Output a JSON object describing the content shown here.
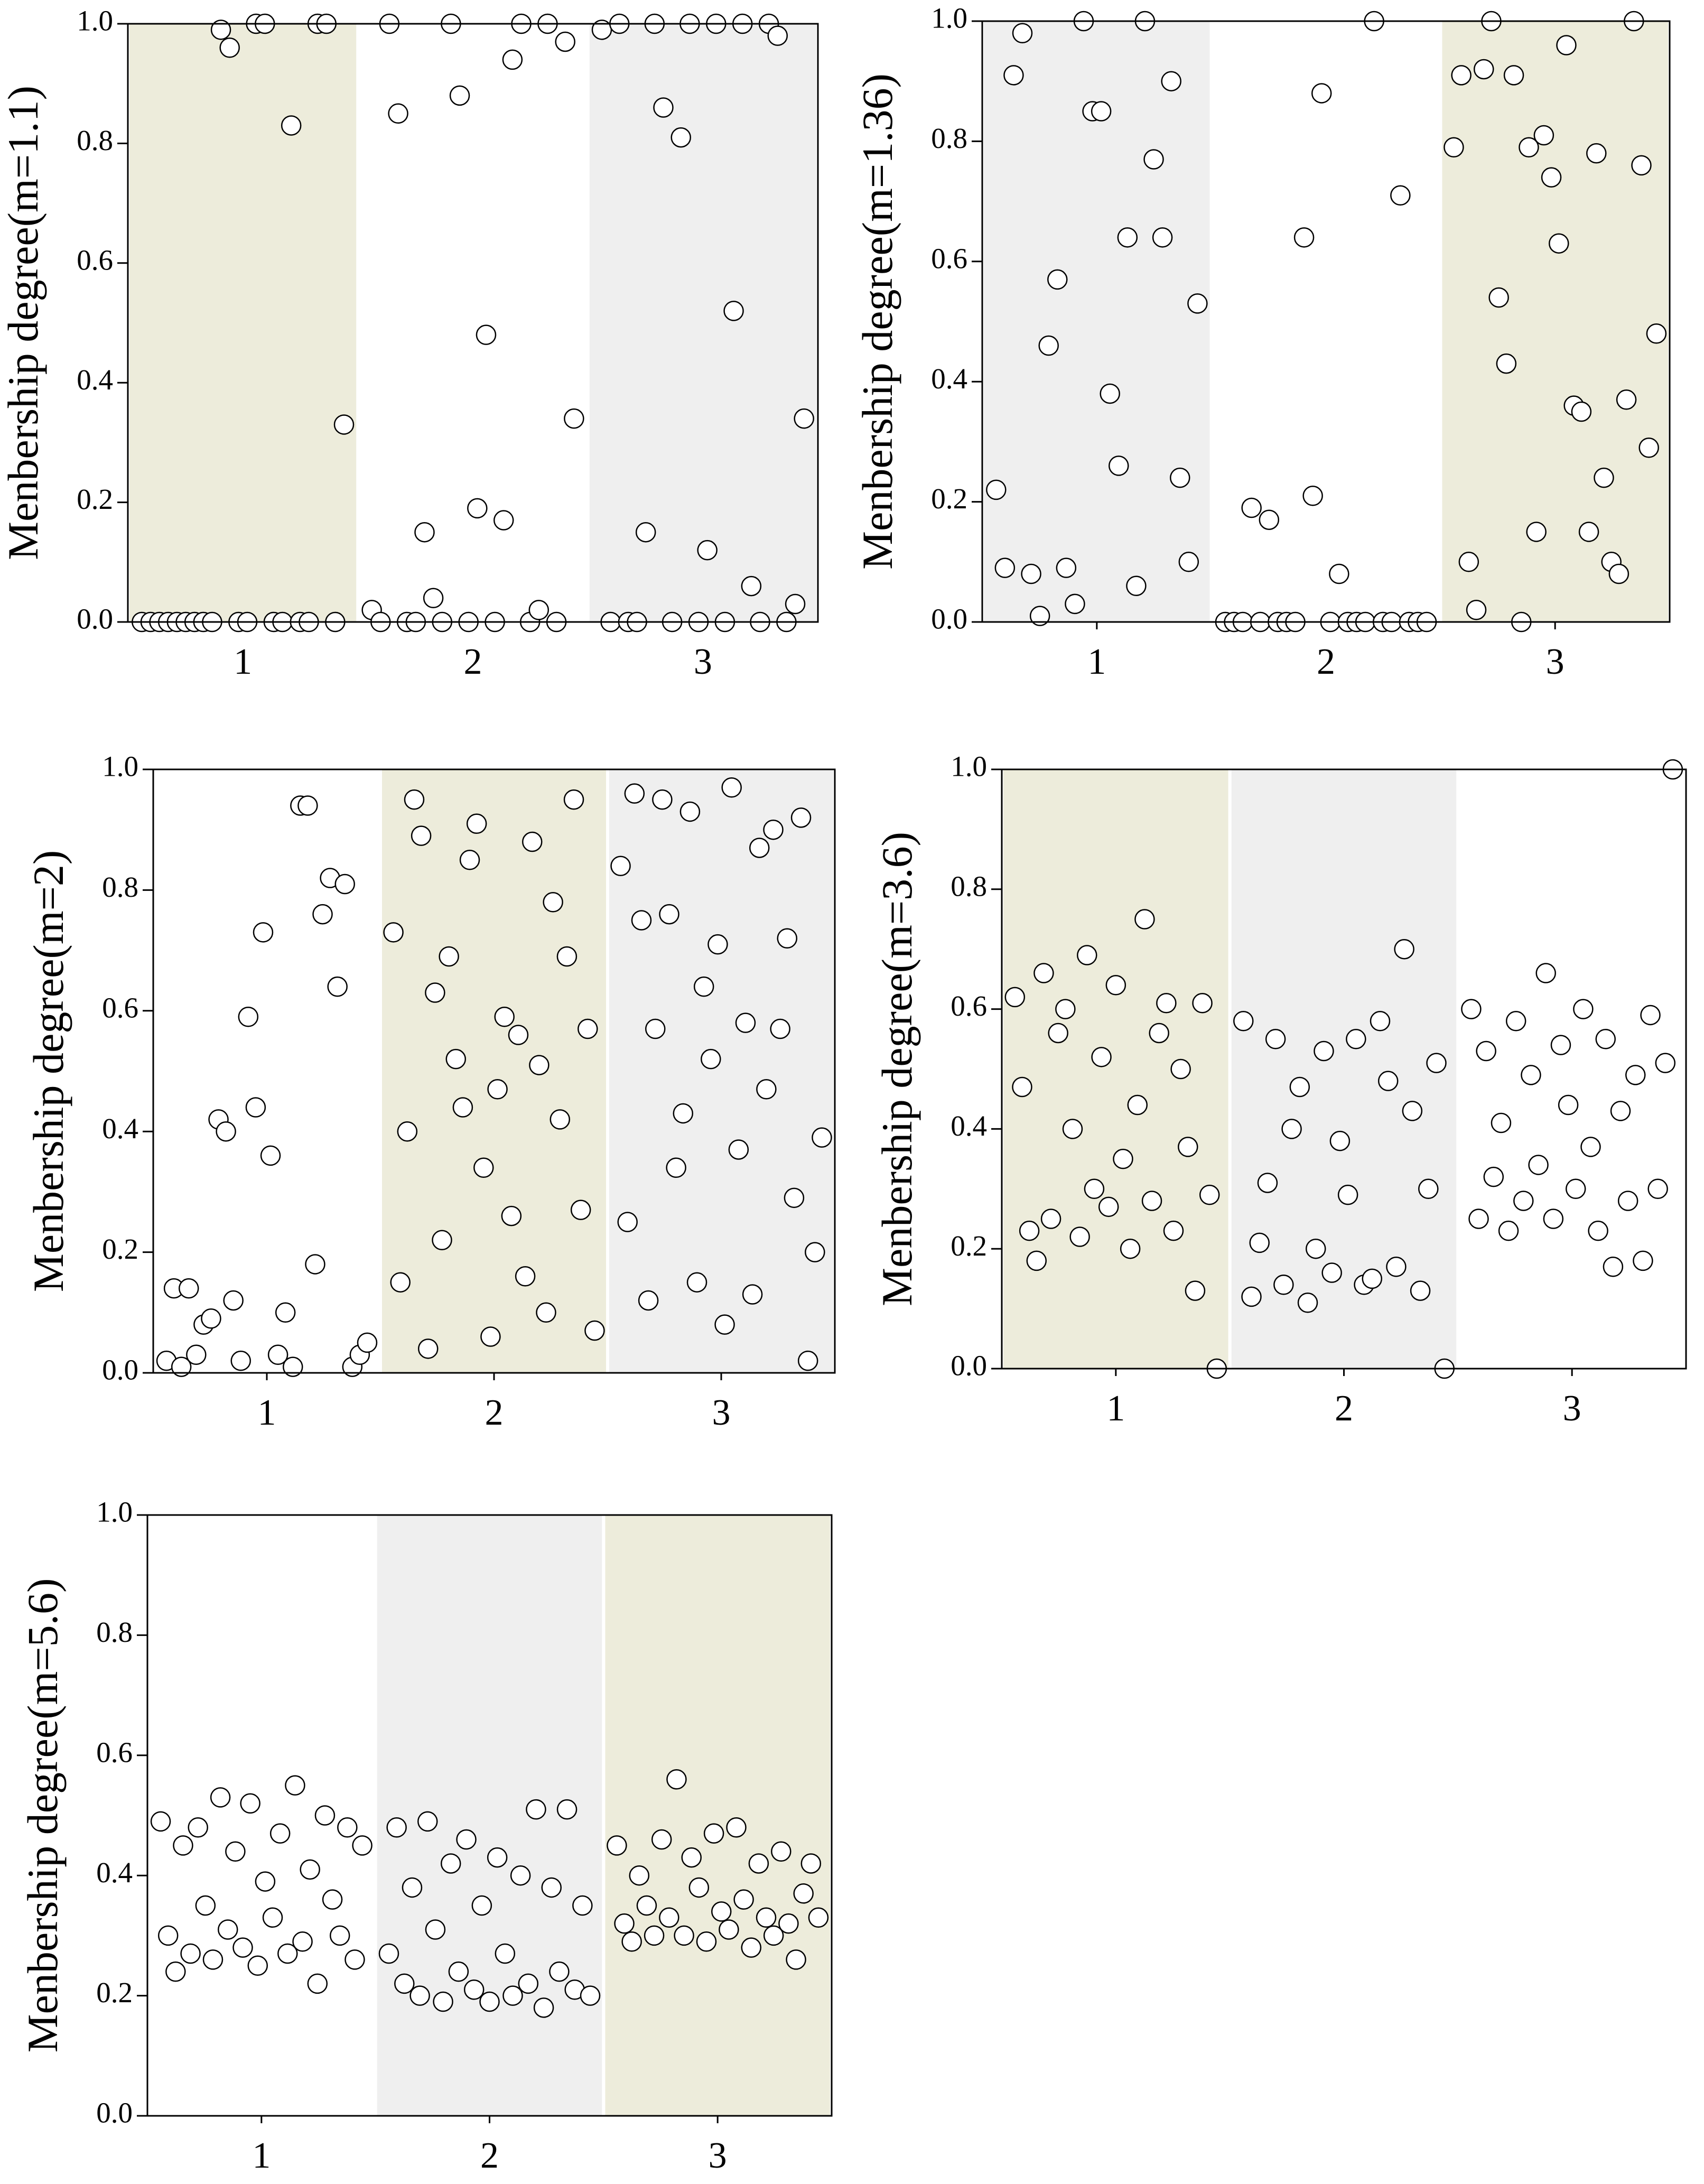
{
  "chart_data": [
    {
      "type": "scatter",
      "ylabel": "Menbership degree(m=1.1)",
      "categories": [
        "1",
        "2",
        "3"
      ],
      "ylim": [
        0,
        1
      ],
      "yticks": [
        {
          "value": 0,
          "label": "0.0"
        },
        0.2,
        0.4,
        0.6,
        0.8,
        {
          "value": 1,
          "label": "1.0"
        }
      ],
      "marker_fill": "#ffffff",
      "marker_edge": "#000000",
      "series": [
        {
          "background": "#edecdb",
          "values": [
            0,
            0,
            0,
            0,
            0,
            0,
            0,
            0,
            0,
            0.99,
            0.96,
            0,
            0,
            1,
            1,
            0,
            0,
            0.83,
            0,
            0,
            1,
            1,
            0,
            0.33
          ]
        },
        {
          "background": "#ffffff",
          "values": [
            0.02,
            0,
            1,
            0.85,
            0,
            0,
            0.15,
            0.04,
            0,
            1,
            0.88,
            0,
            0.19,
            0.48,
            0,
            0.17,
            0.94,
            1,
            0,
            0.02,
            1,
            0,
            0.97,
            0.34
          ]
        },
        {
          "background": "#efefef",
          "values": [
            0.99,
            0,
            1,
            0,
            0,
            0.15,
            1,
            0.86,
            0,
            0.81,
            1,
            0,
            0.12,
            1,
            0,
            0.52,
            1,
            0.06,
            0,
            1,
            0.98,
            0,
            0.03,
            0.34
          ]
        }
      ]
    },
    {
      "type": "scatter",
      "ylabel": "Menbership degree(m=1.36)",
      "categories": [
        "1",
        "2",
        "3"
      ],
      "ylim": [
        0,
        1
      ],
      "yticks": [
        {
          "value": 0,
          "label": "0.0"
        },
        0.2,
        0.4,
        0.6,
        0.8,
        {
          "value": 1,
          "label": "1.0"
        }
      ],
      "marker_fill": "#ffffff",
      "marker_edge": "#000000",
      "series": [
        {
          "background": "#efefef",
          "values": [
            0.22,
            0.09,
            0.91,
            0.98,
            0.08,
            0.01,
            0.46,
            0.57,
            0.09,
            0.03,
            1,
            0.85,
            0.85,
            0.38,
            0.26,
            0.64,
            0.06,
            1,
            0.77,
            0.64,
            0.9,
            0.24,
            0.1,
            0.53
          ]
        },
        {
          "background": "#ffffff",
          "values": [
            0,
            0,
            0,
            0.19,
            0,
            0.17,
            0,
            0,
            0,
            0.64,
            0.21,
            0.88,
            0,
            0.08,
            0,
            0,
            0,
            1,
            0,
            0,
            0.71,
            0,
            0,
            0
          ]
        },
        {
          "background": "#edecdb",
          "values": [
            0.79,
            0.91,
            0.1,
            0.02,
            0.92,
            1,
            0.54,
            0.43,
            0.91,
            0,
            0.79,
            0.15,
            0.81,
            0.74,
            0.63,
            0.96,
            0.36,
            0.35,
            0.15,
            0.78,
            0.24,
            0.1,
            0.08,
            0.37,
            1,
            0.76,
            0.29,
            0.48
          ]
        }
      ]
    },
    {
      "type": "scatter",
      "ylabel": "Menbership degree(m=2)",
      "categories": [
        "1",
        "2",
        "3"
      ],
      "ylim": [
        0,
        1
      ],
      "yticks": [
        {
          "value": 0,
          "label": "0.0"
        },
        0.2,
        0.4,
        0.6,
        0.8,
        {
          "value": 1,
          "label": "1.0"
        }
      ],
      "marker_fill": "#ffffff",
      "marker_edge": "#000000",
      "series": [
        {
          "background": "#ffffff",
          "values": [
            0.02,
            0.14,
            0.01,
            0.14,
            0.03,
            0.08,
            0.09,
            0.42,
            0.4,
            0.12,
            0.02,
            0.59,
            0.44,
            0.73,
            0.36,
            0.03,
            0.1,
            0.01,
            0.94,
            0.94,
            0.18,
            0.76,
            0.82,
            0.64,
            0.81,
            0.01,
            0.03,
            0.05
          ]
        },
        {
          "background": "#edecdb",
          "values": [
            0.73,
            0.15,
            0.4,
            0.95,
            0.89,
            0.04,
            0.63,
            0.22,
            0.69,
            0.52,
            0.44,
            0.85,
            0.91,
            0.34,
            0.06,
            0.47,
            0.59,
            0.26,
            0.56,
            0.16,
            0.88,
            0.51,
            0.1,
            0.78,
            0.42,
            0.69,
            0.95,
            0.27,
            0.57,
            0.07
          ]
        },
        {
          "background": "#efefef",
          "values": [
            0.84,
            0.25,
            0.96,
            0.75,
            0.12,
            0.57,
            0.95,
            0.76,
            0.34,
            0.43,
            0.93,
            0.15,
            0.64,
            0.52,
            0.71,
            0.08,
            0.97,
            0.37,
            0.58,
            0.13,
            0.87,
            0.47,
            0.9,
            0.57,
            0.72,
            0.29,
            0.92,
            0.02,
            0.2,
            0.39
          ]
        }
      ]
    },
    {
      "type": "scatter",
      "ylabel": "Menbership degree(m=3.6)",
      "categories": [
        "1",
        "2",
        "3"
      ],
      "ylim": [
        0,
        1
      ],
      "yticks": [
        {
          "value": 0,
          "label": "0.0"
        },
        0.2,
        0.4,
        0.6,
        0.8,
        {
          "value": 1,
          "label": "1.0"
        }
      ],
      "marker_fill": "#ffffff",
      "marker_edge": "#000000",
      "series": [
        {
          "background": "#edecdb",
          "values": [
            0.62,
            0.47,
            0.23,
            0.18,
            0.66,
            0.25,
            0.56,
            0.6,
            0.4,
            0.22,
            0.69,
            0.3,
            0.52,
            0.27,
            0.64,
            0.35,
            0.2,
            0.44,
            0.75,
            0.28,
            0.56,
            0.61,
            0.23,
            0.5,
            0.37,
            0.13,
            0.61,
            0.29,
            0
          ]
        },
        {
          "background": "#efefef",
          "values": [
            0.58,
            0.12,
            0.21,
            0.31,
            0.55,
            0.14,
            0.4,
            0.47,
            0.11,
            0.2,
            0.53,
            0.16,
            0.38,
            0.29,
            0.55,
            0.14,
            0.15,
            0.58,
            0.48,
            0.17,
            0.7,
            0.43,
            0.13,
            0.3,
            0.51,
            0
          ]
        },
        {
          "background": "#ffffff",
          "values": [
            0.6,
            0.25,
            0.53,
            0.32,
            0.41,
            0.23,
            0.58,
            0.28,
            0.49,
            0.34,
            0.66,
            0.25,
            0.54,
            0.44,
            0.3,
            0.6,
            0.37,
            0.23,
            0.55,
            0.17,
            0.43,
            0.28,
            0.49,
            0.18,
            0.59,
            0.3,
            0.51,
            1
          ]
        }
      ]
    },
    {
      "type": "scatter",
      "ylabel": "Menbership degree(m=5.6)",
      "categories": [
        "1",
        "2",
        "3"
      ],
      "ylim": [
        0,
        1
      ],
      "yticks": [
        {
          "value": 0,
          "label": "0.0"
        },
        0.2,
        0.4,
        0.6,
        0.8,
        {
          "value": 1,
          "label": "1.0"
        }
      ],
      "marker_fill": "#ffffff",
      "marker_edge": "#000000",
      "series": [
        {
          "background": "#ffffff",
          "values": [
            0.49,
            0.3,
            0.24,
            0.45,
            0.27,
            0.48,
            0.35,
            0.26,
            0.53,
            0.31,
            0.44,
            0.28,
            0.52,
            0.25,
            0.39,
            0.33,
            0.47,
            0.27,
            0.55,
            0.29,
            0.41,
            0.22,
            0.5,
            0.36,
            0.3,
            0.48,
            0.26,
            0.45
          ]
        },
        {
          "background": "#efefef",
          "values": [
            0.27,
            0.48,
            0.22,
            0.38,
            0.2,
            0.49,
            0.31,
            0.19,
            0.42,
            0.24,
            0.46,
            0.21,
            0.35,
            0.19,
            0.43,
            0.27,
            0.2,
            0.4,
            0.22,
            0.51,
            0.18,
            0.38,
            0.24,
            0.51,
            0.21,
            0.35,
            0.2
          ]
        },
        {
          "background": "#edecdb",
          "values": [
            0.45,
            0.32,
            0.29,
            0.4,
            0.35,
            0.3,
            0.46,
            0.33,
            0.56,
            0.3,
            0.43,
            0.38,
            0.29,
            0.47,
            0.34,
            0.31,
            0.48,
            0.36,
            0.28,
            0.42,
            0.33,
            0.3,
            0.44,
            0.32,
            0.26,
            0.37,
            0.42,
            0.33
          ]
        }
      ]
    }
  ]
}
